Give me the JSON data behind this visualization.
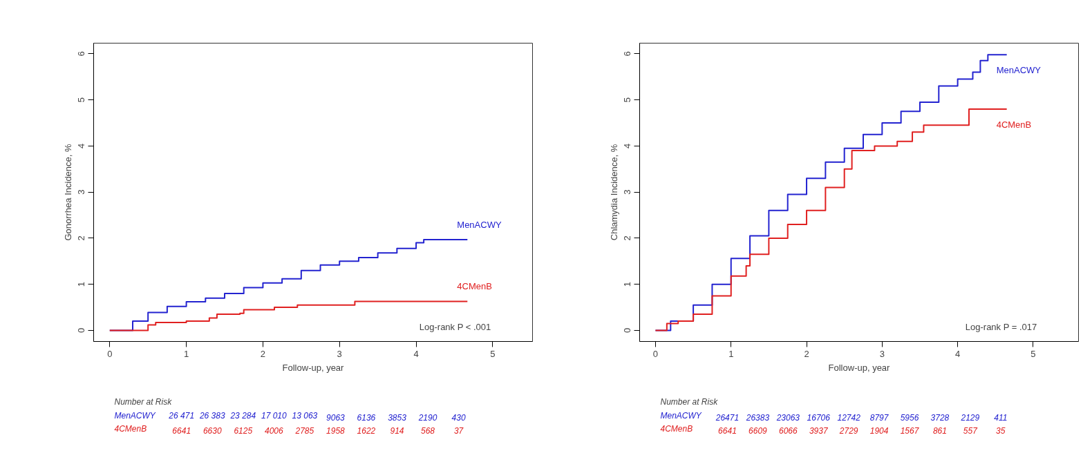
{
  "chart_data": [
    {
      "type": "step",
      "ylabel": "Gonorrhea Incidence, %",
      "xlabel": "Follow-up, year",
      "xlim": [
        -0.21,
        5.52
      ],
      "ylim": [
        -0.24,
        6.23
      ],
      "xticks": [
        0,
        1,
        2,
        3,
        4,
        5
      ],
      "yticks": [
        0,
        1,
        2,
        3,
        4,
        5,
        6
      ],
      "grid": false,
      "legend": false,
      "series": [
        {
          "name": "MenACWY",
          "color": "#2323d0",
          "x": [
            0,
            0.13,
            0.3,
            0.5,
            0.75,
            1,
            1.25,
            1.5,
            1.75,
            2,
            2.25,
            2.5,
            2.75,
            3,
            3.25,
            3.5,
            3.75,
            4,
            4.1,
            4.67
          ],
          "values": [
            0,
            0,
            0.2,
            0.39,
            0.52,
            0.62,
            0.7,
            0.8,
            0.93,
            1.03,
            1.12,
            1.3,
            1.42,
            1.5,
            1.58,
            1.68,
            1.78,
            1.9,
            1.97,
            1.97
          ]
        },
        {
          "name": "4CMenB",
          "color": "#e02020",
          "x": [
            0,
            0.3,
            0.5,
            0.6,
            1,
            1.3,
            1.4,
            1.7,
            1.75,
            2.15,
            2.45,
            3.2,
            4.67
          ],
          "values": [
            0,
            0,
            0.12,
            0.17,
            0.2,
            0.27,
            0.35,
            0.37,
            0.45,
            0.5,
            0.55,
            0.63,
            0.63
          ]
        }
      ],
      "annotations": [
        "Log-rank P < .001",
        "Number at Risk",
        "MenACWY",
        "26 471",
        "26 383",
        "23 284",
        "17 010",
        "13 063",
        "9063",
        "6136",
        "3853",
        "2190",
        "430",
        "4CMenB",
        "6641",
        "6630",
        "6125",
        "4006",
        "2785",
        "1958",
        "1622",
        "914",
        "568",
        "37"
      ]
    },
    {
      "type": "step",
      "ylabel": "Chlamydia Incidence, %",
      "xlabel": "Follow-up, year",
      "xlim": [
        -0.21,
        5.6
      ],
      "ylim": [
        -0.24,
        6.23
      ],
      "xticks": [
        0,
        1,
        2,
        3,
        4,
        5
      ],
      "yticks": [
        0,
        1,
        2,
        3,
        4,
        5,
        6
      ],
      "grid": false,
      "legend": false,
      "series": [
        {
          "name": "MenACWY",
          "color": "#2323d0",
          "x": [
            0,
            0.05,
            0.2,
            0.5,
            0.75,
            1,
            1.25,
            1.5,
            1.75,
            2,
            2.25,
            2.5,
            2.75,
            3,
            3.25,
            3.5,
            3.75,
            4,
            4.2,
            4.3,
            4.4,
            4.65
          ],
          "values": [
            0,
            0,
            0.2,
            0.55,
            1.0,
            1.56,
            2.05,
            2.6,
            2.95,
            3.3,
            3.65,
            3.95,
            4.25,
            4.5,
            4.75,
            4.95,
            5.3,
            5.45,
            5.6,
            5.85,
            5.98,
            5.98
          ]
        },
        {
          "name": "4CMenB",
          "color": "#e02020",
          "x": [
            0,
            0.1,
            0.15,
            0.3,
            0.5,
            0.75,
            1,
            1.2,
            1.25,
            1.5,
            1.75,
            2,
            2.25,
            2.5,
            2.6,
            2.9,
            3.2,
            3.4,
            3.55,
            4.15,
            4.65
          ],
          "values": [
            0,
            0,
            0.15,
            0.2,
            0.35,
            0.75,
            1.18,
            1.4,
            1.65,
            2.0,
            2.3,
            2.6,
            3.1,
            3.5,
            3.9,
            4.0,
            4.1,
            4.3,
            4.45,
            4.8,
            4.8
          ]
        }
      ],
      "annotations": [
        "Log-rank P = .017",
        "Number at Risk",
        "MenACWY",
        "26471",
        "26383",
        "23063",
        "16706",
        "12742",
        "8797",
        "5956",
        "3728",
        "2129",
        "411",
        "4CMenB",
        "6641",
        "6609",
        "6066",
        "3937",
        "2729",
        "1904",
        "1567",
        "861",
        "557",
        "35"
      ]
    }
  ]
}
